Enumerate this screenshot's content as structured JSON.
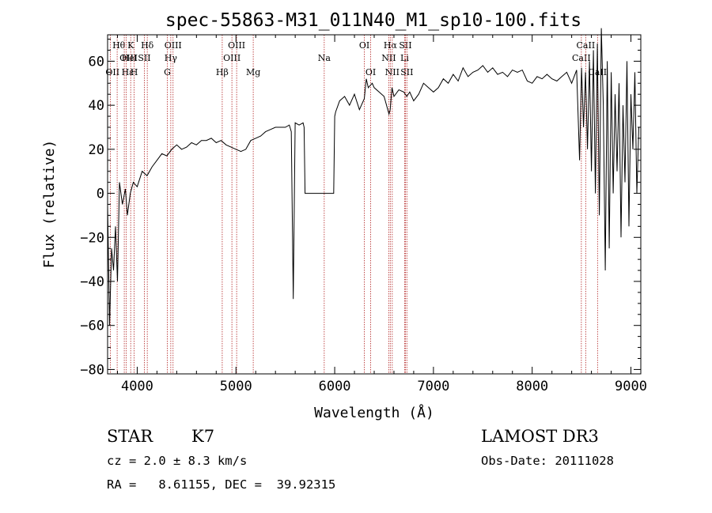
{
  "chart_data": {
    "type": "line",
    "title": "spec-55863-M31_011N40_M1_sp10-100.fits",
    "xlabel": "Wavelength (Å)",
    "ylabel": "Flux (relative)",
    "xlim": [
      3700,
      9100
    ],
    "ylim": [
      -82,
      72
    ],
    "x_ticks": [
      4000,
      5000,
      6000,
      7000,
      8000,
      9000
    ],
    "y_ticks": [
      -80,
      -60,
      -40,
      -20,
      0,
      20,
      40,
      60
    ],
    "grid": false,
    "series": [
      {
        "x": [
          3700,
          3720,
          3740,
          3760,
          3780,
          3800,
          3820,
          3850,
          3880,
          3900,
          3930,
          3960,
          4000,
          4050,
          4100,
          4150,
          4200,
          4250,
          4300,
          4350,
          4400,
          4450,
          4500,
          4550,
          4600,
          4650,
          4700,
          4750,
          4800,
          4850,
          4900,
          4950,
          5000,
          5050,
          5100,
          5150,
          5200,
          5250,
          5300,
          5350,
          5400,
          5450,
          5500,
          5540,
          5560,
          5580,
          5600,
          5640,
          5680,
          5690,
          5700,
          5800,
          5900,
          5990,
          6000,
          6010,
          6050,
          6100,
          6150,
          6200,
          6250,
          6300,
          6320,
          6340,
          6380,
          6400,
          6450,
          6500,
          6550,
          6562,
          6580,
          6600,
          6650,
          6700,
          6730,
          6760,
          6800,
          6850,
          6900,
          6950,
          7000,
          7050,
          7100,
          7150,
          7200,
          7250,
          7300,
          7350,
          7400,
          7450,
          7500,
          7550,
          7600,
          7650,
          7700,
          7750,
          7800,
          7850,
          7900,
          7950,
          8000,
          8050,
          8100,
          8150,
          8200,
          8250,
          8300,
          8350,
          8400,
          8450,
          8480,
          8500,
          8520,
          8540,
          8560,
          8580,
          8600,
          8620,
          8640,
          8660,
          8680,
          8700,
          8720,
          8740,
          8760,
          8780,
          8800,
          8820,
          8840,
          8860,
          8880,
          8900,
          8920,
          8940,
          8960,
          8980,
          9000,
          9020,
          9040,
          9060,
          9080
        ],
        "y": [
          -5,
          -60,
          -25,
          -35,
          -15,
          -40,
          5,
          -5,
          2,
          -10,
          0,
          5,
          3,
          10,
          8,
          12,
          15,
          18,
          17,
          20,
          22,
          20,
          21,
          23,
          22,
          24,
          24,
          25,
          23,
          24,
          22,
          21,
          20,
          19,
          20,
          24,
          25,
          26,
          28,
          29,
          30,
          30,
          30,
          31,
          28,
          -48,
          32,
          31,
          32,
          30,
          0,
          0,
          0,
          0,
          35,
          37,
          42,
          44,
          40,
          45,
          38,
          43,
          52,
          48,
          50,
          48,
          46,
          44,
          36,
          38,
          48,
          44,
          47,
          46,
          44,
          46,
          42,
          45,
          50,
          48,
          46,
          48,
          52,
          50,
          54,
          51,
          57,
          53,
          55,
          56,
          58,
          55,
          57,
          54,
          55,
          53,
          56,
          55,
          56,
          51,
          50,
          53,
          52,
          54,
          52,
          51,
          53,
          55,
          50,
          56,
          15,
          57,
          30,
          55,
          20,
          60,
          10,
          65,
          0,
          68,
          -10,
          75,
          40,
          -35,
          60,
          -25,
          55,
          0,
          45,
          10,
          50,
          -20,
          40,
          5,
          60,
          -15,
          45,
          20,
          55,
          0,
          30
        ]
      }
    ],
    "line_markers": [
      {
        "name": "OII",
        "wl": 3727,
        "row": 3,
        "align": "left"
      },
      {
        "name": "Hθ",
        "wl": 3797,
        "row": 1,
        "align": "left"
      },
      {
        "name": "OIII",
        "wl": 3869,
        "row": 2,
        "align": "left"
      },
      {
        "name": "Hε",
        "wl": 3889,
        "row": 3,
        "align": "left"
      },
      {
        "name": "HeI",
        "wl": 3889,
        "row": 2,
        "align": "left"
      },
      {
        "name": "K",
        "wl": 3934,
        "row": 1,
        "align": "center"
      },
      {
        "name": "H",
        "wl": 3969,
        "row": 3,
        "align": "center"
      },
      {
        "name": "SII",
        "wl": 4072,
        "row": 2,
        "align": "center"
      },
      {
        "name": "Hδ",
        "wl": 4102,
        "row": 1,
        "align": "center"
      },
      {
        "name": "OIII",
        "wl": 4363,
        "row": 1,
        "align": "center"
      },
      {
        "name": "Hγ",
        "wl": 4340,
        "row": 2,
        "align": "center"
      },
      {
        "name": "G",
        "wl": 4305,
        "row": 3,
        "align": "center"
      },
      {
        "name": "Hβ",
        "wl": 4861,
        "row": 3,
        "align": "center"
      },
      {
        "name": "OIII",
        "wl": 4959,
        "row": 2,
        "align": "center"
      },
      {
        "name": "OIII",
        "wl": 5007,
        "row": 1,
        "align": "center"
      },
      {
        "name": "Mg",
        "wl": 5175,
        "row": 3,
        "align": "center"
      },
      {
        "name": "Na",
        "wl": 5894,
        "row": 2,
        "align": "center"
      },
      {
        "name": "OI",
        "wl": 6300,
        "row": 1,
        "align": "center"
      },
      {
        "name": "OI",
        "wl": 6364,
        "row": 3,
        "align": "center"
      },
      {
        "name": "NII",
        "wl": 6548,
        "row": 2,
        "align": "center"
      },
      {
        "name": "Hα",
        "wl": 6563,
        "row": 1,
        "align": "center"
      },
      {
        "name": "NII",
        "wl": 6583,
        "row": 3,
        "align": "center"
      },
      {
        "name": "Li",
        "wl": 6708,
        "row": 2,
        "align": "center"
      },
      {
        "name": "SII",
        "wl": 6716,
        "row": 1,
        "align": "center"
      },
      {
        "name": "SII",
        "wl": 6731,
        "row": 3,
        "align": "center"
      },
      {
        "name": "CaII",
        "wl": 8498,
        "row": 2,
        "align": "center"
      },
      {
        "name": "CaII",
        "wl": 8542,
        "row": 1,
        "align": "center"
      },
      {
        "name": "CaII",
        "wl": 8662,
        "row": 3,
        "align": "center"
      }
    ]
  },
  "info": {
    "class": "STAR",
    "subclass": "K7",
    "survey": "LAMOST DR3",
    "redshift": "cz = 2.0 ± 8.3 km/s",
    "obs_date": "Obs-Date: 20111028",
    "coords": "RA =   8.61155, DEC =  39.92315"
  },
  "colors": {
    "spectrum": "#000000",
    "marker": "#b22222",
    "axes": "#000000"
  }
}
